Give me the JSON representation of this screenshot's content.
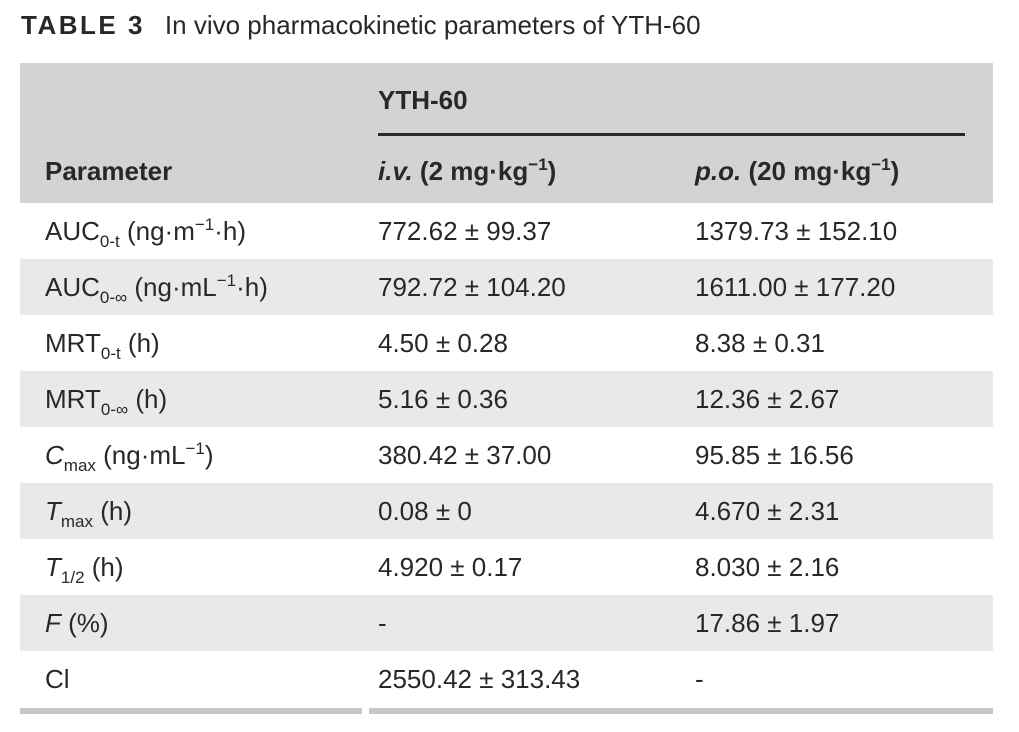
{
  "caption": {
    "label": "TABLE 3",
    "title": "In vivo pharmacokinetic parameters of YTH-60"
  },
  "table": {
    "group_header": "YTH-60",
    "columns": [
      {
        "label": "Parameter"
      },
      {
        "parts": [
          {
            "t": "i.v.",
            "italic": true
          },
          {
            "t": " (2 mg·kg"
          },
          {
            "t": "−1",
            "sup": true
          },
          {
            "t": ")"
          }
        ]
      },
      {
        "parts": [
          {
            "t": "p.o.",
            "italic": true
          },
          {
            "t": " (20 mg·kg"
          },
          {
            "t": "−1",
            "sup": true
          },
          {
            "t": ")"
          }
        ]
      }
    ],
    "rows": [
      {
        "param": [
          {
            "t": "AUC"
          },
          {
            "t": "0-t",
            "sub": true
          },
          {
            "t": " (ng·m"
          },
          {
            "t": "−1",
            "sup": true
          },
          {
            "t": "·h)"
          }
        ],
        "iv": "772.62 ± 99.37",
        "po": "1379.73 ± 152.10"
      },
      {
        "param": [
          {
            "t": "AUC"
          },
          {
            "t": "0-∞",
            "sub": true
          },
          {
            "t": " (ng·mL"
          },
          {
            "t": "−1",
            "sup": true
          },
          {
            "t": "·h)"
          }
        ],
        "iv": "792.72 ± 104.20",
        "po": "1611.00 ± 177.20"
      },
      {
        "param": [
          {
            "t": "MRT"
          },
          {
            "t": "0-t",
            "sub": true
          },
          {
            "t": " (h)"
          }
        ],
        "iv": "4.50 ± 0.28",
        "po": "8.38 ± 0.31"
      },
      {
        "param": [
          {
            "t": "MRT"
          },
          {
            "t": "0-∞",
            "sub": true
          },
          {
            "t": " (h)"
          }
        ],
        "iv": "5.16 ± 0.36",
        "po": "12.36 ± 2.67"
      },
      {
        "param": [
          {
            "t": "C",
            "italic": true
          },
          {
            "t": "max",
            "sub": true
          },
          {
            "t": " (ng·mL"
          },
          {
            "t": "−1",
            "sup": true
          },
          {
            "t": ")"
          }
        ],
        "iv": "380.42 ± 37.00",
        "po": "95.85 ± 16.56"
      },
      {
        "param": [
          {
            "t": "T",
            "italic": true
          },
          {
            "t": "max",
            "sub": true
          },
          {
            "t": " (h)"
          }
        ],
        "iv": "0.08 ± 0",
        "po": "4.670 ± 2.31"
      },
      {
        "param": [
          {
            "t": "T",
            "italic": true
          },
          {
            "t": "1/2",
            "sub": true
          },
          {
            "t": " (h)"
          }
        ],
        "iv": "4.920 ± 0.17",
        "po": "8.030 ± 2.16"
      },
      {
        "param": [
          {
            "t": "F",
            "italic": true
          },
          {
            "t": " (%)"
          }
        ],
        "iv": "-",
        "po": "17.86 ± 1.97"
      },
      {
        "param": [
          {
            "t": "Cl"
          }
        ],
        "iv": "2550.42 ± 313.43",
        "po": "-"
      }
    ]
  },
  "colors": {
    "header_bg": "#d1d3d4",
    "alt_row_bg": "#e8e9ea",
    "text": "#2b2728",
    "group_rule": "#2b2829",
    "bottom_rule": "#c5c7c9"
  }
}
